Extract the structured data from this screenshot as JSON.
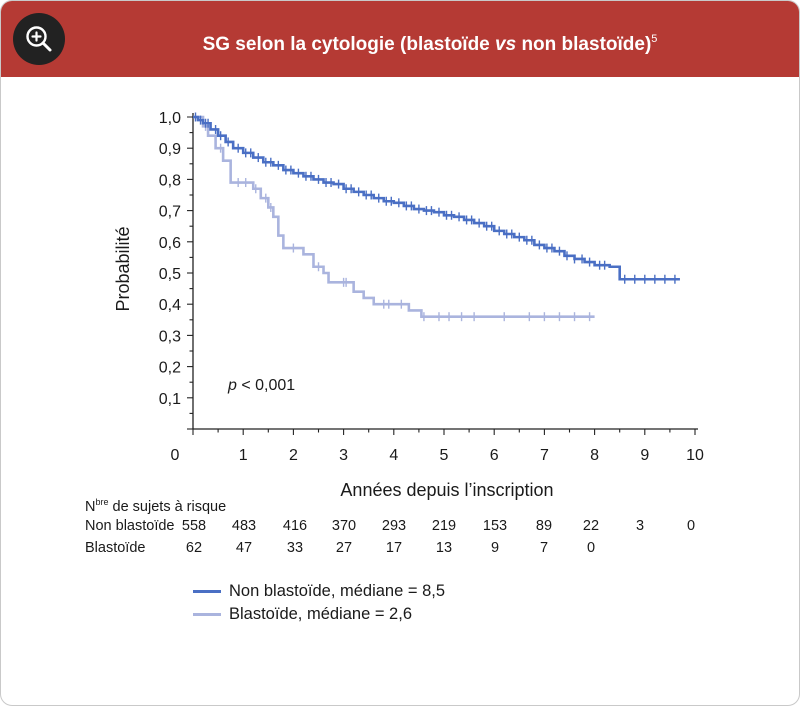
{
  "header": {
    "title_main": "SG selon la cytologie (blastoïde ",
    "title_vs": "vs",
    "title_end": " non blastoïde)",
    "title_ref": "5",
    "zoom_icon": "zoom-in-icon"
  },
  "colors": {
    "header_bg": "#b53a34",
    "non_blastoid": "#4a6fc4",
    "blastoid": "#aab4de",
    "axis": "#222222"
  },
  "chart_data": {
    "type": "line",
    "subtype": "kaplan-meier",
    "title": "SG selon la cytologie (blastoïde vs non blastoïde)",
    "xlabel": "Années depuis l’inscription",
    "ylabel": "Probabilité",
    "xlim": [
      0,
      10
    ],
    "ylim": [
      0,
      1.0
    ],
    "x_ticks": [
      "0",
      "1",
      "2",
      "3",
      "4",
      "5",
      "6",
      "7",
      "8",
      "9",
      "10"
    ],
    "y_ticks": [
      "0,1",
      "0,2",
      "0,3",
      "0,4",
      "0,5",
      "0,6",
      "0,7",
      "0,8",
      "0,9",
      "1,0"
    ],
    "annotation": {
      "p_italic": "p",
      "p_rest": " < 0,001"
    },
    "series": [
      {
        "name": "Non blastoïde",
        "legend": "Non blastoïde, médiane = 8,5",
        "median": 8.5,
        "points": [
          [
            0,
            1.0
          ],
          [
            0.1,
            0.99
          ],
          [
            0.2,
            0.98
          ],
          [
            0.35,
            0.96
          ],
          [
            0.5,
            0.94
          ],
          [
            0.65,
            0.92
          ],
          [
            0.8,
            0.9
          ],
          [
            1.0,
            0.885
          ],
          [
            1.2,
            0.87
          ],
          [
            1.4,
            0.855
          ],
          [
            1.6,
            0.845
          ],
          [
            1.8,
            0.83
          ],
          [
            2.0,
            0.82
          ],
          [
            2.2,
            0.81
          ],
          [
            2.4,
            0.8
          ],
          [
            2.6,
            0.79
          ],
          [
            2.8,
            0.785
          ],
          [
            3.0,
            0.77
          ],
          [
            3.2,
            0.76
          ],
          [
            3.4,
            0.75
          ],
          [
            3.6,
            0.74
          ],
          [
            3.8,
            0.73
          ],
          [
            4.0,
            0.725
          ],
          [
            4.2,
            0.715
          ],
          [
            4.4,
            0.705
          ],
          [
            4.6,
            0.7
          ],
          [
            4.8,
            0.695
          ],
          [
            5.0,
            0.685
          ],
          [
            5.2,
            0.68
          ],
          [
            5.4,
            0.67
          ],
          [
            5.6,
            0.66
          ],
          [
            5.8,
            0.65
          ],
          [
            6.0,
            0.635
          ],
          [
            6.2,
            0.625
          ],
          [
            6.4,
            0.615
          ],
          [
            6.6,
            0.605
          ],
          [
            6.8,
            0.59
          ],
          [
            7.0,
            0.58
          ],
          [
            7.2,
            0.57
          ],
          [
            7.4,
            0.555
          ],
          [
            7.6,
            0.545
          ],
          [
            7.8,
            0.535
          ],
          [
            8.0,
            0.525
          ],
          [
            8.3,
            0.52
          ],
          [
            8.5,
            0.48
          ],
          [
            9.7,
            0.48
          ]
        ],
        "censor": [
          0.05,
          0.15,
          0.25,
          0.3,
          0.45,
          0.55,
          0.7,
          0.9,
          1.05,
          1.15,
          1.3,
          1.45,
          1.55,
          1.7,
          1.85,
          1.95,
          2.1,
          2.25,
          2.35,
          2.5,
          2.65,
          2.75,
          2.9,
          3.05,
          3.15,
          3.3,
          3.45,
          3.55,
          3.7,
          3.85,
          3.95,
          4.1,
          4.25,
          4.35,
          4.5,
          4.65,
          4.75,
          4.9,
          5.05,
          5.15,
          5.3,
          5.45,
          5.55,
          5.7,
          5.85,
          5.95,
          6.1,
          6.25,
          6.35,
          6.5,
          6.65,
          6.75,
          6.9,
          7.05,
          7.15,
          7.3,
          7.45,
          7.6,
          7.75,
          7.9,
          8.1,
          8.2,
          8.6,
          8.8,
          9.0,
          9.2,
          9.4,
          9.6
        ]
      },
      {
        "name": "Blastoïde",
        "legend": "Blastoïde, médiane = 2,6",
        "median": 2.6,
        "points": [
          [
            0,
            1.0
          ],
          [
            0.2,
            0.97
          ],
          [
            0.3,
            0.94
          ],
          [
            0.45,
            0.9
          ],
          [
            0.6,
            0.86
          ],
          [
            0.75,
            0.79
          ],
          [
            1.2,
            0.77
          ],
          [
            1.35,
            0.74
          ],
          [
            1.5,
            0.71
          ],
          [
            1.6,
            0.68
          ],
          [
            1.7,
            0.62
          ],
          [
            1.8,
            0.58
          ],
          [
            2.2,
            0.56
          ],
          [
            2.4,
            0.52
          ],
          [
            2.6,
            0.5
          ],
          [
            2.7,
            0.47
          ],
          [
            3.2,
            0.44
          ],
          [
            3.4,
            0.42
          ],
          [
            3.6,
            0.4
          ],
          [
            4.3,
            0.38
          ],
          [
            4.55,
            0.36
          ],
          [
            8.0,
            0.36
          ]
        ],
        "censor": [
          0.25,
          0.55,
          0.9,
          1.05,
          1.25,
          1.45,
          1.55,
          2.0,
          2.5,
          3.0,
          3.05,
          3.8,
          3.9,
          4.15,
          4.6,
          4.9,
          5.1,
          5.35,
          5.6,
          6.2,
          6.7,
          7.0,
          7.3,
          7.6,
          7.9
        ]
      }
    ]
  },
  "risk_table": {
    "title_n": "N",
    "title_sup": "bre",
    "title_rest": " de sujets à risque",
    "rows": [
      {
        "label": "Non blastoïde",
        "values": [
          "558",
          "483",
          "416",
          "370",
          "293",
          "219",
          "153",
          "89",
          "22",
          "3",
          "0"
        ]
      },
      {
        "label": "Blastoïde",
        "values": [
          "62",
          "47",
          "33",
          "27",
          "17",
          "13",
          "9",
          "7",
          "0"
        ]
      }
    ]
  }
}
